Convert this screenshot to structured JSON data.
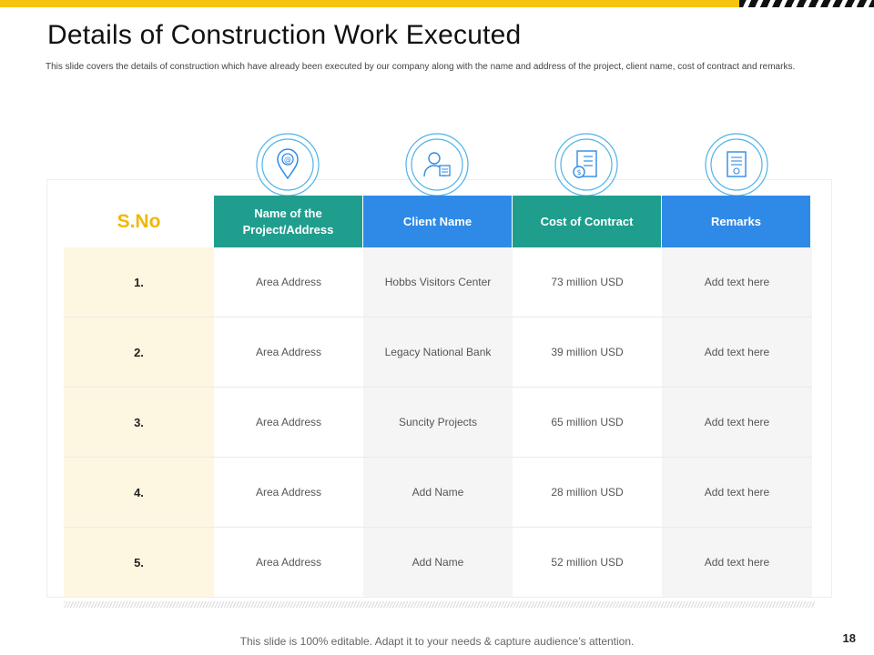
{
  "slide": {
    "title": "Details of Construction Work Executed",
    "subtitle": "This slide covers the details of construction which have already been executed by our company along with the name and address of the project, client name, cost of contract and remarks.",
    "footer": "This slide is 100% editable. Adapt it to your needs & capture audience’s attention.",
    "page_number": "18"
  },
  "colors": {
    "accent_yellow": "#f6c40f",
    "teal": "#1f9e8e",
    "blue": "#2e8ae6",
    "sno_gold": "#f2b705"
  },
  "icons": [
    "location-pin-icon",
    "client-person-icon",
    "contract-cost-icon",
    "document-remarks-icon"
  ],
  "table": {
    "sno_header": "S.No",
    "headers": [
      "Name of the Project/Address",
      "Client Name",
      "Cost of Contract",
      "Remarks"
    ],
    "rows": [
      {
        "sno": "1.",
        "address": "Area Address",
        "client": "Hobbs Visitors Center",
        "cost": "73 million USD",
        "remarks": "Add text here"
      },
      {
        "sno": "2.",
        "address": "Area Address",
        "client": "Legacy National Bank",
        "cost": "39 million USD",
        "remarks": "Add text here"
      },
      {
        "sno": "3.",
        "address": "Area Address",
        "client": "Suncity Projects",
        "cost": "65 million USD",
        "remarks": "Add text here"
      },
      {
        "sno": "4.",
        "address": "Area Address",
        "client": "Add Name",
        "cost": "28 million USD",
        "remarks": "Add text here"
      },
      {
        "sno": "5.",
        "address": "Area Address",
        "client": "Add Name",
        "cost": "52 million USD",
        "remarks": "Add text here"
      }
    ]
  }
}
